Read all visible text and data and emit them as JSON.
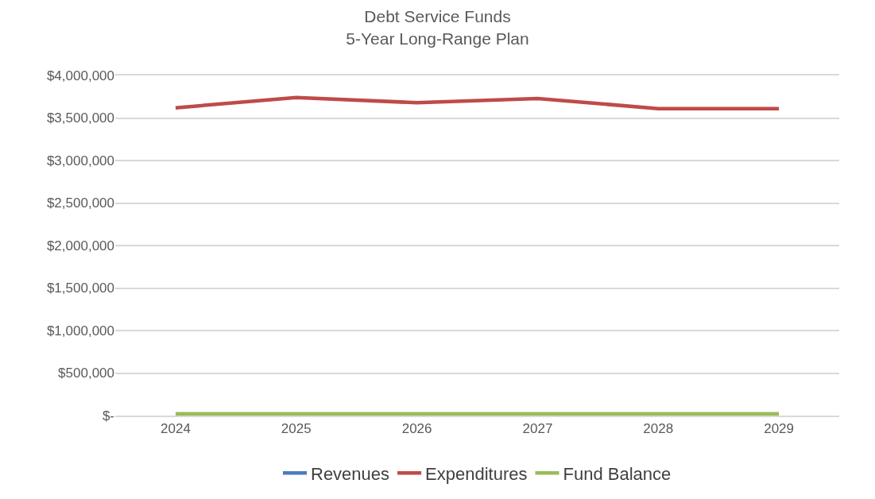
{
  "chart_data": {
    "type": "line",
    "title": "Debt Service Funds",
    "subtitle": "5-Year Long-Range Plan",
    "categories": [
      "2024",
      "2025",
      "2026",
      "2027",
      "2028",
      "2029"
    ],
    "series": [
      {
        "name": "Revenues",
        "color": "#4a7ebb",
        "values": [
          null,
          null,
          null,
          null,
          null,
          null
        ]
      },
      {
        "name": "Expenditures",
        "color": "#be4b48",
        "values": [
          3620000,
          3740000,
          3680000,
          3730000,
          3610000,
          3610000
        ]
      },
      {
        "name": "Fund Balance",
        "color": "#9bbb59",
        "values": [
          20000,
          20000,
          20000,
          20000,
          20000,
          20000
        ]
      }
    ],
    "ylim": [
      0,
      4000000
    ],
    "yticks": [
      {
        "value": 0,
        "label": "$-"
      },
      {
        "value": 500000,
        "label": "$500,000"
      },
      {
        "value": 1000000,
        "label": "$1,000,000"
      },
      {
        "value": 1500000,
        "label": "$1,500,000"
      },
      {
        "value": 2000000,
        "label": "$2,000,000"
      },
      {
        "value": 2500000,
        "label": "$2,500,000"
      },
      {
        "value": 3000000,
        "label": "$3,000,000"
      },
      {
        "value": 3500000,
        "label": "$3,500,000"
      },
      {
        "value": 4000000,
        "label": "$4,000,000"
      }
    ],
    "grid": "y",
    "legend": "bottom",
    "marker": "none",
    "line_style": "solid"
  }
}
